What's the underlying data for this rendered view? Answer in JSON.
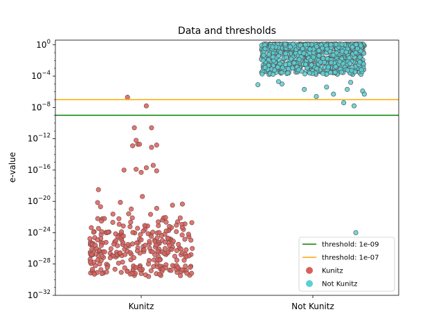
{
  "chart_data": {
    "type": "scatter",
    "title": "Data and thresholds",
    "ylabel": "e-value",
    "yscale": "log",
    "ylim_exponent": [
      -32,
      0.6
    ],
    "categories": [
      "Kunitz",
      "Not Kunitz"
    ],
    "y_ticks": [
      {
        "base": "10",
        "exp": "0",
        "value": 1
      },
      {
        "base": "10",
        "exp": "−4",
        "value": 0.0001
      },
      {
        "base": "10",
        "exp": "−8",
        "value": 1e-08
      },
      {
        "base": "10",
        "exp": "−12",
        "value": 1e-12
      },
      {
        "base": "10",
        "exp": "−16",
        "value": 1e-16
      },
      {
        "base": "10",
        "exp": "−20",
        "value": 1e-20
      },
      {
        "base": "10",
        "exp": "−24",
        "value": 1e-24
      },
      {
        "base": "10",
        "exp": "−28",
        "value": 1e-28
      },
      {
        "base": "10",
        "exp": "−32",
        "value": 1e-32
      }
    ],
    "thresholds": [
      {
        "label": "threshold: 1e-09",
        "value": 1e-09,
        "color": "#008000"
      },
      {
        "label": "threshold: 1e-07",
        "value": 1e-07,
        "color": "#ffa500"
      }
    ],
    "series": [
      {
        "name": "Kunitz",
        "color": "#d9605a",
        "edge": "#7a4a4a",
        "outliers": [
          {
            "jitter": -0.08,
            "log10": -6.7
          },
          {
            "jitter": 0.03,
            "log10": -7.8
          },
          {
            "jitter": -0.04,
            "log10": -10.6
          },
          {
            "jitter": 0.06,
            "log10": -10.6
          },
          {
            "jitter": -0.03,
            "log10": -12.2
          },
          {
            "jitter": -0.05,
            "log10": -12.9
          },
          {
            "jitter": -0.02,
            "log10": -12.7
          },
          {
            "jitter": -0.01,
            "log10": -12.7
          },
          {
            "jitter": 0.09,
            "log10": -12.8
          },
          {
            "jitter": 0.06,
            "log10": -13.1
          },
          {
            "jitter": -0.1,
            "log10": -16.0
          },
          {
            "jitter": 0.03,
            "log10": -15.7
          },
          {
            "jitter": 0.07,
            "log10": -15.4
          },
          {
            "jitter": -0.03,
            "log10": -15.9
          },
          {
            "jitter": 0.0,
            "log10": -16.3
          },
          {
            "jitter": 0.09,
            "log10": -16.1
          }
        ],
        "cluster": {
          "count": 300,
          "log10_min": -29.6,
          "log10_max": -18.4,
          "log10_center": -26.0
        }
      },
      {
        "name": "Not Kunitz",
        "color": "#5bd0d5",
        "edge": "#555555",
        "outliers": [
          {
            "jitter": -0.32,
            "log10": -5.1
          },
          {
            "jitter": -0.18,
            "log10": -5.0
          },
          {
            "jitter": -0.05,
            "log10": -5.7
          },
          {
            "jitter": 0.08,
            "log10": -5.4
          },
          {
            "jitter": 0.12,
            "log10": -6.3
          },
          {
            "jitter": 0.2,
            "log10": -5.7
          },
          {
            "jitter": 0.29,
            "log10": -5.9
          },
          {
            "jitter": 0.3,
            "log10": -6.3
          },
          {
            "jitter": 0.18,
            "log10": -7.4
          },
          {
            "jitter": 0.24,
            "log10": -7.8
          },
          {
            "jitter": 0.02,
            "log10": -6.6
          },
          {
            "jitter": -0.2,
            "log10": -4.7
          },
          {
            "jitter": 0.22,
            "log10": -4.8
          },
          {
            "jitter": 0.25,
            "log10": -24.0
          }
        ],
        "cluster": {
          "count": 900,
          "log10_min": -3.8,
          "log10_max": 0.1,
          "log10_center": -1.0
        }
      }
    ],
    "legend": {
      "placement": "lower-right",
      "entries": [
        "threshold: 1e-09",
        "threshold: 1e-07",
        "Kunitz",
        "Not Kunitz"
      ]
    }
  }
}
